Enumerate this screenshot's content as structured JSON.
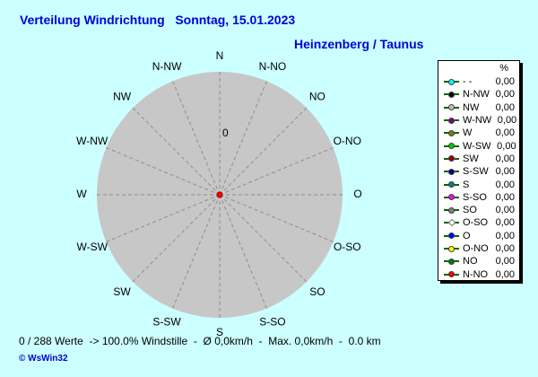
{
  "title": "Verteilung Windrichtung   Sonntag, 15.01.2023",
  "subtitle": "Heinzenberg / Taunus",
  "chart_data": {
    "type": "wind-rose-polar",
    "title": "Verteilung Windrichtung Sonntag, 15.01.2023",
    "station": "Heinzenberg / Taunus",
    "directions_clockwise_from_north": [
      "N",
      "N-NO",
      "NO",
      "O-NO",
      "O",
      "O-SO",
      "SO",
      "S-SO",
      "S",
      "S-SW",
      "SW",
      "W-SW",
      "W",
      "W-NW",
      "NW",
      "N-NW"
    ],
    "values_percent": [
      0,
      0,
      0,
      0,
      0,
      0,
      0,
      0,
      0,
      0,
      0,
      0,
      0,
      0,
      0,
      0
    ],
    "calm_percent": 100.0,
    "radial_axis_tick_labels": [
      "0"
    ],
    "legend_position": "right",
    "grid": "dashed-radial-spokes"
  },
  "legend": {
    "header": "%",
    "items": [
      {
        "label": "- -",
        "value": "0,00",
        "color": "#00FFFF",
        "shape": "circle"
      },
      {
        "label": "N-NW",
        "value": "0,00",
        "color": "#000000",
        "shape": "circle"
      },
      {
        "label": "NW",
        "value": "0,00",
        "color": "#C0C0C0",
        "shape": "circle"
      },
      {
        "label": "W-NW",
        "value": "0,00",
        "color": "#800080",
        "shape": "circle"
      },
      {
        "label": "W",
        "value": "0,00",
        "color": "#808000",
        "shape": "circle"
      },
      {
        "label": "W-SW",
        "value": "0,00",
        "color": "#00CC00",
        "shape": "circle"
      },
      {
        "label": "SW",
        "value": "0,00",
        "color": "#990000",
        "shape": "circle"
      },
      {
        "label": "S-SW",
        "value": "0,00",
        "color": "#000099",
        "shape": "circle"
      },
      {
        "label": "S",
        "value": "0,00",
        "color": "#008080",
        "shape": "circle"
      },
      {
        "label": "S-SO",
        "value": "0,00",
        "color": "#FF00FF",
        "shape": "circle"
      },
      {
        "label": "SO",
        "value": "0,00",
        "color": "#808080",
        "shape": "circle"
      },
      {
        "label": "O-SO",
        "value": "0,00",
        "color": "#FFFFFF",
        "shape": "diamond"
      },
      {
        "label": "O",
        "value": "0,00",
        "color": "#0000FF",
        "shape": "circle"
      },
      {
        "label": "O-NO",
        "value": "0,00",
        "color": "#FFFF00",
        "shape": "circle"
      },
      {
        "label": "NO",
        "value": "0,00",
        "color": "#008000",
        "shape": "circle"
      },
      {
        "label": "N-NO",
        "value": "0,00",
        "color": "#FF0000",
        "shape": "circle"
      }
    ]
  },
  "status_line": "0 / 288 Werte  -> 100.0% Windstille  -  Ø 0,0km/h  -  Max. 0,0km/h  -  0.0 km",
  "footer": "© WsWin32",
  "colors": {
    "background": "#CCFFFF",
    "title_text": "#0000D8",
    "footer_text": "#0000CC",
    "circle_fill": "#C7C7C7",
    "spoke_gray": "#8E8E8E",
    "legend_line": "#006600",
    "center_dot": "#FF0000",
    "label_text": "#000000"
  }
}
